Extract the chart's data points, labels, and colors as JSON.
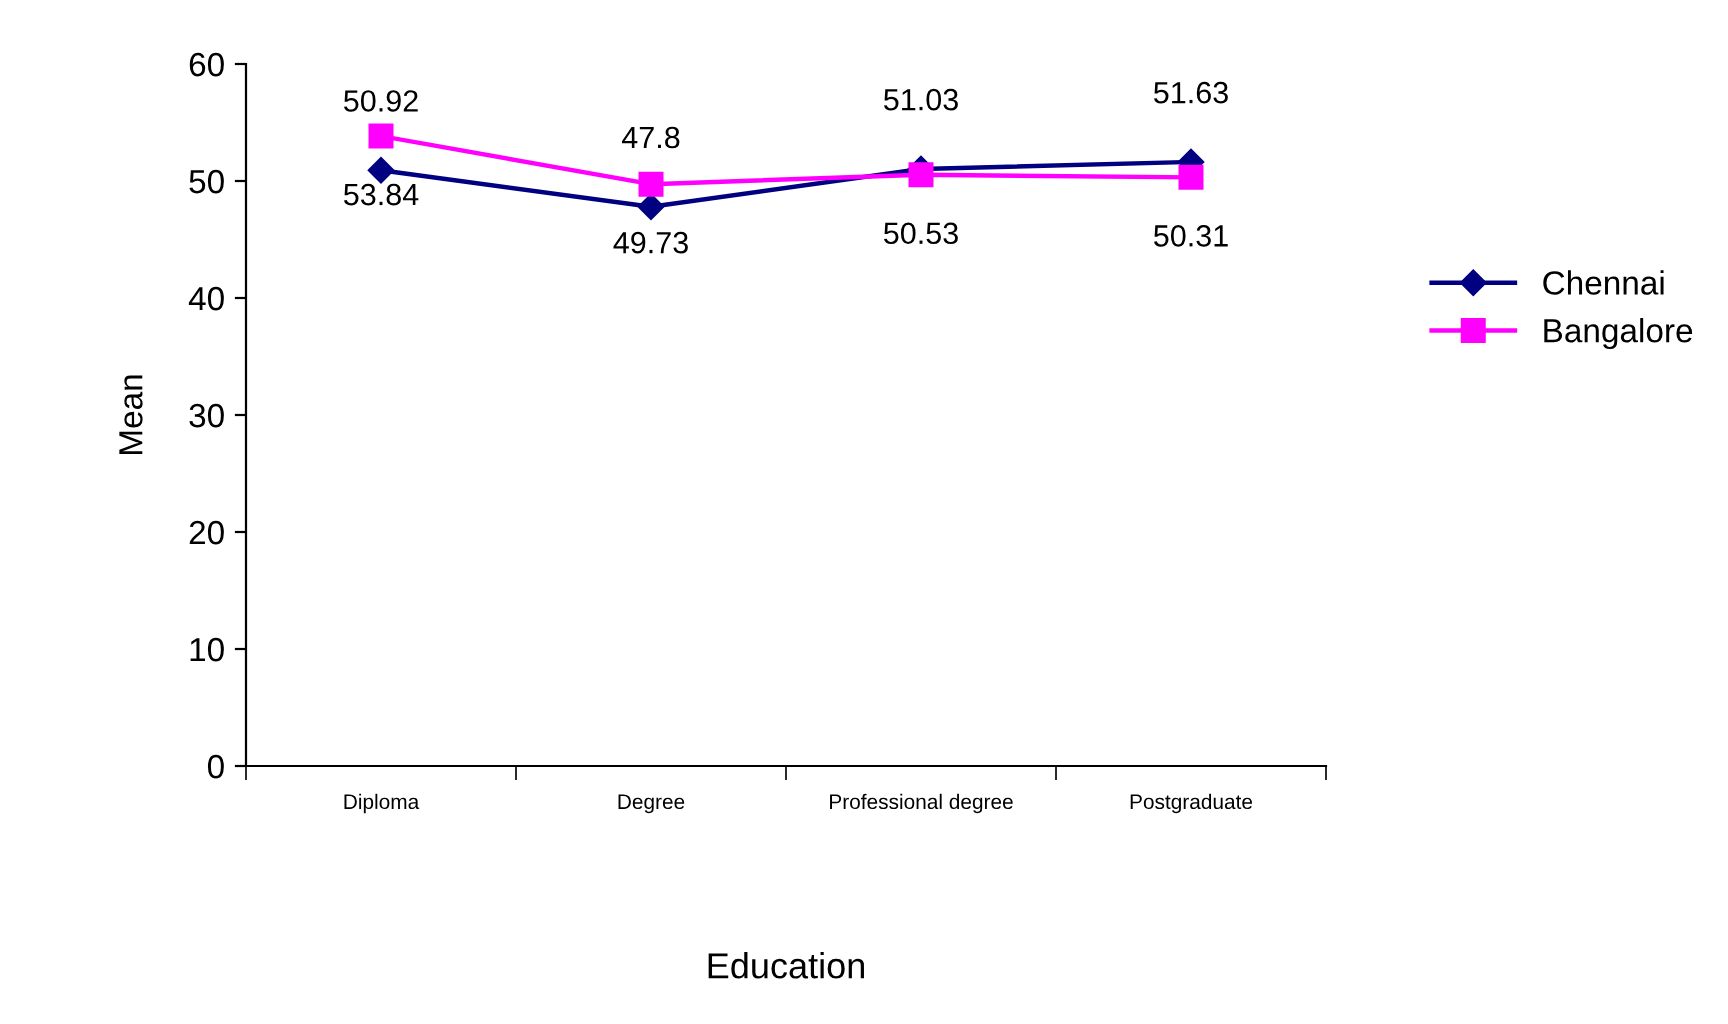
{
  "chart_data": {
    "type": "line",
    "xlabel": "Education",
    "ylabel": "Mean",
    "categories": [
      "Diploma",
      "Degree",
      "Professional degree",
      "Postgraduate"
    ],
    "series": [
      {
        "name": "Chennai",
        "color": "#000080",
        "values": [
          50.92,
          47.8,
          51.03,
          51.63
        ],
        "marker": "diamond"
      },
      {
        "name": "Bangalore",
        "color": "#ff00ff",
        "values": [
          53.84,
          49.73,
          50.53,
          50.31
        ],
        "marker": "square"
      }
    ],
    "ylim": [
      0,
      60
    ],
    "yticks": [
      0,
      10,
      20,
      30,
      40,
      50,
      60
    ],
    "grid": false,
    "legend": "right",
    "data_labels": true,
    "line_style": "solid"
  }
}
